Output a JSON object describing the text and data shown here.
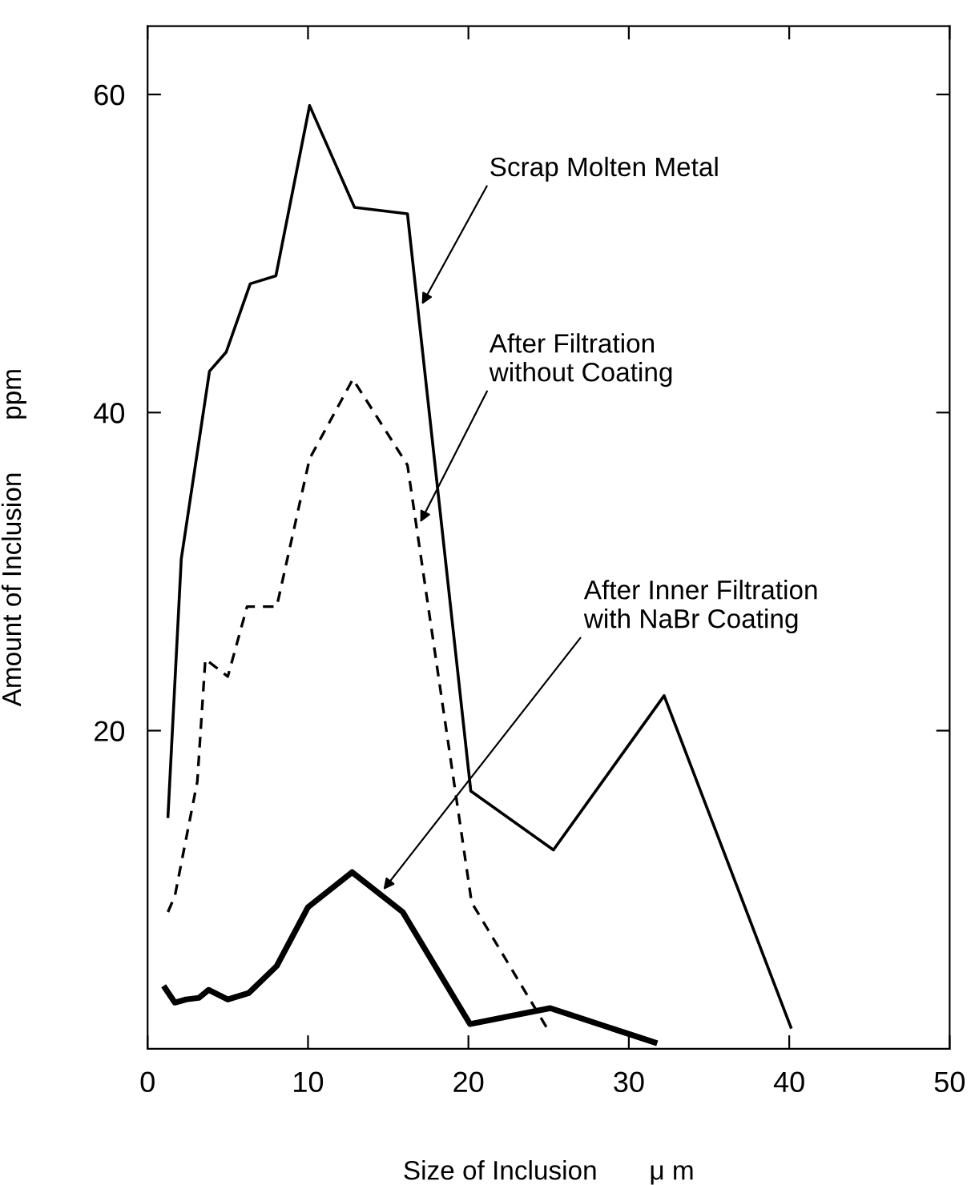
{
  "chart_data": {
    "type": "line",
    "xlabel": "Size of Inclusion       μ m",
    "ylabel": "Amount of Inclusion       ppm",
    "xlim": [
      0,
      50
    ],
    "xticks": [
      0,
      10,
      20,
      30,
      40,
      50
    ],
    "ylim": [
      0,
      64.3
    ],
    "yticks": [
      20,
      40,
      60
    ],
    "grid": false,
    "legend": false,
    "series": [
      {
        "color": "#000000",
        "line_style": "solid",
        "x": [
          1.27,
          2.1,
          3.86,
          4.9,
          6.4,
          8.0,
          10.1,
          12.9,
          16.2,
          20.15,
          25.3,
          32.2,
          40.1
        ],
        "values": [
          14.6,
          30.8,
          42.6,
          43.8,
          48.1,
          48.6,
          59.3,
          52.9,
          52.5,
          16.2,
          12.5,
          22.2,
          1.35
        ]
      },
      {
        "color": "#000000",
        "line_style": "dashed",
        "x": [
          1.27,
          1.7,
          3.1,
          3.6,
          5.0,
          6.2,
          8.05,
          10.1,
          12.8,
          16.2,
          20.2,
          24.9
        ],
        "values": [
          8.6,
          9.6,
          16.8,
          24.5,
          23.4,
          27.8,
          27.8,
          37.1,
          42.1,
          36.7,
          9.2,
          1.3
        ]
      },
      {
        "color": "#000000",
        "line_style": "solid",
        "x": [
          1.1,
          1.7,
          2.4,
          3.2,
          3.8,
          5.0,
          6.3,
          8.05,
          10.0,
          12.75,
          15.9,
          20.1,
          25.1,
          31.6
        ],
        "values": [
          3.8,
          2.9,
          3.1,
          3.2,
          3.7,
          3.1,
          3.5,
          5.2,
          8.9,
          11.1,
          8.6,
          1.55,
          2.55,
          0.4
        ]
      }
    ],
    "annotations": [
      {
        "text": "Scrap Molten Metal",
        "x": 17.1,
        "y": 46.8
      },
      {
        "text": "After Filtration\nwithout Coating",
        "x": 17.0,
        "y": 33.1
      },
      {
        "text": "After Inner Filtration\nwith NaBr Coating",
        "x": 14.7,
        "y": 10.0
      }
    ]
  }
}
